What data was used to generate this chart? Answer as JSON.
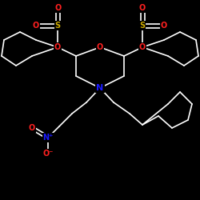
{
  "background_color": "#000000",
  "atom_colors": {
    "C": "#ffffff",
    "N": "#1a1aff",
    "O": "#ff2020",
    "S": "#ccaa00",
    "N_plus": "#1a1aff",
    "O_minus": "#ff2020"
  },
  "bond_color": "#ffffff",
  "font_size_atoms": 7,
  "fig_width": 2.5,
  "fig_height": 2.5,
  "dpi": 100,
  "lw": 1.2
}
